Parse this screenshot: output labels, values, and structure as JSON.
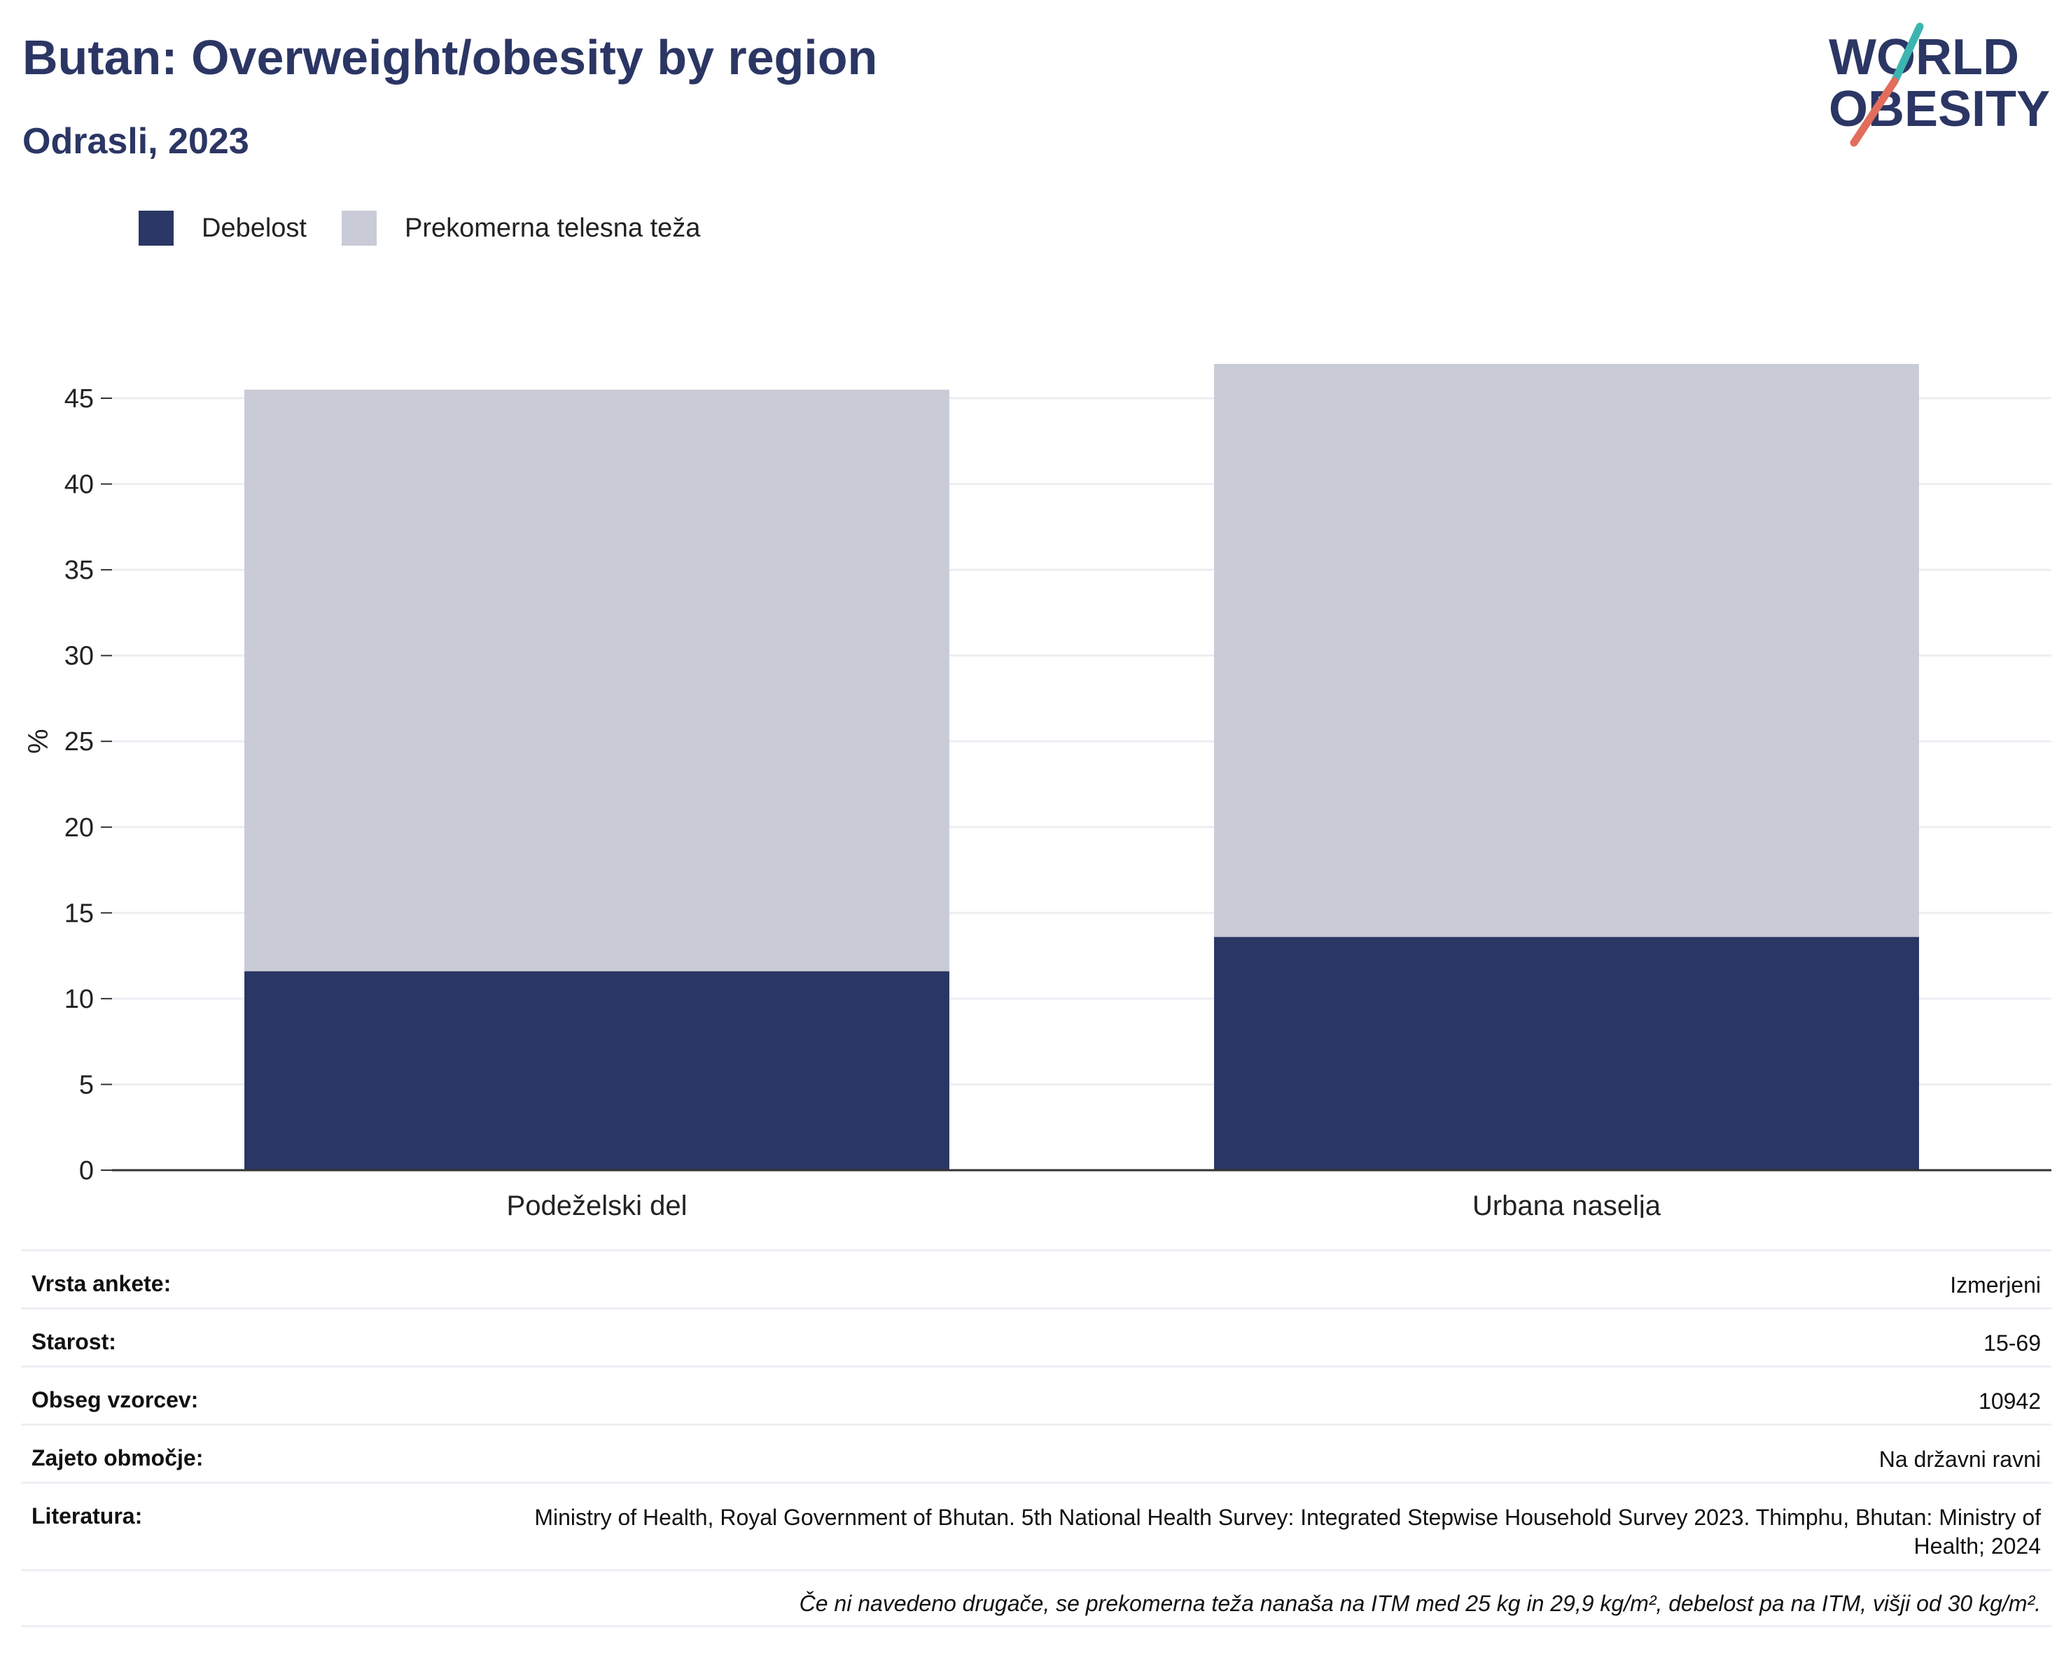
{
  "header": {
    "title": "Butan: Overweight/obesity by region",
    "subtitle": "Odrasli, 2023"
  },
  "logo": {
    "line1": "WORLD",
    "line2": "OBESITY"
  },
  "colors": {
    "obesity": "#2a3664",
    "overweight": "#c9cbd6",
    "title": "#2b3664",
    "logo_teal": "#3bb5b0",
    "logo_coral": "#e26d5c"
  },
  "chart_data": {
    "type": "bar",
    "stacked": true,
    "categories": [
      "Podeželski del",
      "Urbana naselja"
    ],
    "series": [
      {
        "name": "Debelost",
        "values": [
          11.6,
          13.6
        ]
      },
      {
        "name": "Prekomerna telesna teža",
        "values": [
          33.9,
          33.4
        ]
      }
    ],
    "xlabel": "",
    "ylabel": "%",
    "ylim": [
      0,
      47
    ],
    "yticks": [
      0,
      5,
      10,
      15,
      20,
      25,
      30,
      35,
      40,
      45
    ],
    "grid": true,
    "legend_position": "top-left"
  },
  "meta": {
    "rows": [
      {
        "key": "Vrsta ankete:",
        "value": "Izmerjeni"
      },
      {
        "key": "Starost:",
        "value": "15-69"
      },
      {
        "key": "Obseg vzorcev:",
        "value": "10942"
      },
      {
        "key": "Zajeto območje:",
        "value": "Na državni ravni"
      },
      {
        "key": "Literatura:",
        "value": "Ministry of Health, Royal Government of Bhutan. 5th National Health Survey: Integrated Stepwise Household Survey 2023. Thimphu, Bhutan: Ministry of Health; 2024"
      }
    ],
    "note": "Če ni navedeno drugače, se prekomerna teža nanaša na ITM med 25 kg in 29,9 kg/m², debelost pa na ITM, višji od 30 kg/m²."
  }
}
